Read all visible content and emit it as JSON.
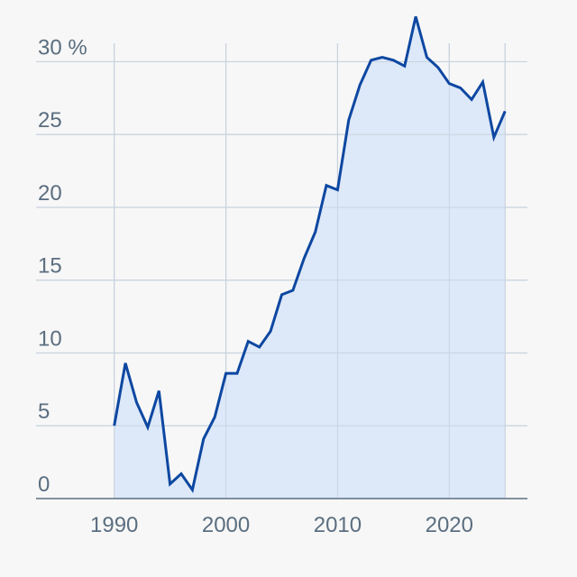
{
  "chart_data": {
    "type": "area",
    "title": "",
    "xlabel": "",
    "ylabel": "",
    "y_unit": "%",
    "xlim": [
      1983,
      2027
    ],
    "ylim": [
      0,
      33
    ],
    "x_ticks": [
      1990,
      2000,
      2010,
      2020
    ],
    "y_ticks": [
      0,
      5,
      10,
      15,
      20,
      25,
      30
    ],
    "y_tick_labels": [
      "0",
      "5",
      "10",
      "15",
      "20",
      "25",
      "30 %"
    ],
    "grid": true,
    "legend": "none",
    "colors": {
      "line": "#0d47a1",
      "fill": "#dde8f8",
      "grid": "#c8d3de",
      "axis": "#5b6e80",
      "background": "#f7f7f7"
    },
    "series": [
      {
        "x": [
          1990,
          1991,
          1992,
          1993,
          1994,
          1995,
          1996,
          1997,
          1998,
          1999,
          2000,
          2001,
          2002,
          2003,
          2004,
          2005,
          2006,
          2007,
          2008,
          2009,
          2010,
          2011,
          2012,
          2013,
          2014,
          2015,
          2016,
          2017,
          2018,
          2019,
          2020,
          2021,
          2022,
          2023,
          2024,
          2025
        ],
        "values": [
          5,
          9.3,
          6.6,
          4.9,
          7.4,
          1,
          1.7,
          0.6,
          4.1,
          5.6,
          8.6,
          8.6,
          10.8,
          10.4,
          11.5,
          14,
          14.3,
          16.5,
          18.3,
          21.5,
          21.2,
          26,
          28.4,
          30.1,
          30.3,
          30.1,
          29.7,
          33.1,
          30.3,
          29.6,
          28.5,
          28.2,
          27.4,
          28.6,
          24.8,
          26.6
        ]
      }
    ]
  }
}
